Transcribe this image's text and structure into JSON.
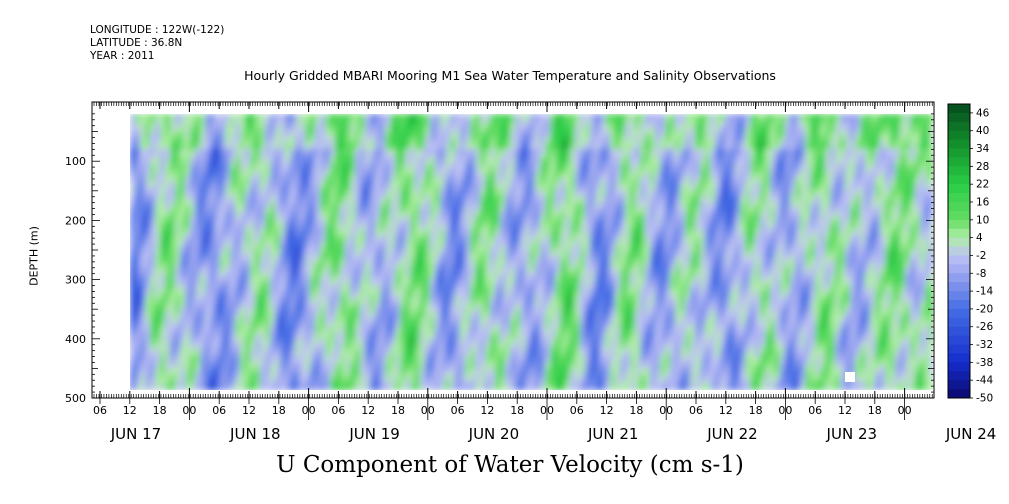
{
  "meta": {
    "longitude": "LONGITUDE : 122W(-122)",
    "latitude": "LATITUDE : 36.8N",
    "year": "YEAR : 2011"
  },
  "chart_data": {
    "type": "heatmap",
    "title": "Hourly Gridded MBARI Mooring M1 Sea Water Temperature and Salinity Observations",
    "xlabel": "U Component of Water Velocity (cm s-1)",
    "ylabel": "DEPTH (m)",
    "ylim": [
      500,
      0
    ],
    "y_ticks": [
      100,
      200,
      300,
      400,
      500
    ],
    "x_hour_ticks": [
      "06",
      "12",
      "18",
      "00",
      "06",
      "12",
      "18",
      "00",
      "06",
      "12",
      "18",
      "00",
      "06",
      "12",
      "18",
      "00",
      "06",
      "12",
      "18",
      "00",
      "06",
      "12",
      "18",
      "00",
      "06",
      "12",
      "18",
      "00"
    ],
    "x_day_labels": [
      "JUN 17",
      "JUN 18",
      "JUN 19",
      "JUN 20",
      "JUN 21",
      "JUN 22",
      "JUN 23",
      "JUN 24"
    ],
    "data_depth_range": [
      15,
      485
    ],
    "colorbar": {
      "labels": [
        "46",
        "40",
        "34",
        "28",
        "22",
        "16",
        "10",
        "4",
        "-2",
        "-8",
        "-14",
        "-20",
        "-26",
        "-32",
        "-38",
        "-44",
        "-50"
      ],
      "range": [
        -50,
        49
      ]
    }
  }
}
